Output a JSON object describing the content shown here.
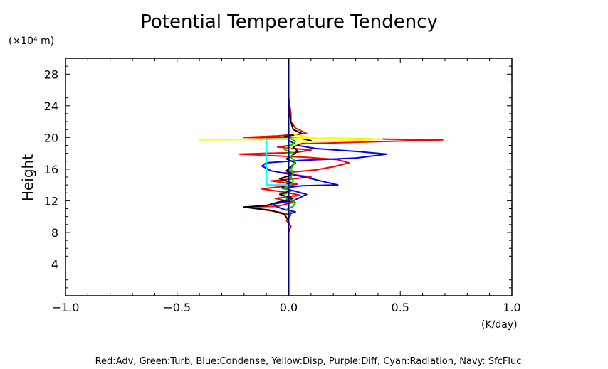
{
  "chart_data": {
    "type": "line",
    "title": "Potential Temperature Tendency",
    "ylabel": "Height",
    "y_unit": "(×10⁴ m)",
    "x_unit": "(K/day)",
    "xlim": [
      -1.0,
      1.0
    ],
    "ylim": [
      0,
      30
    ],
    "x_ticks": [
      "−1.0",
      "−0.5",
      "0.0",
      "0.5",
      "1.0"
    ],
    "x_tick_values": [
      -1.0,
      -0.5,
      0.0,
      0.5,
      1.0
    ],
    "y_ticks": [
      "4",
      "8",
      "12",
      "16",
      "20",
      "24",
      "28"
    ],
    "y_tick_values": [
      4,
      8,
      12,
      16,
      20,
      24,
      28
    ],
    "grid": false,
    "legend_text": "Red:Adv, Green:Turb, Blue:Condense, Yellow:Disp, Purple:Diff, Cyan:Radiation, Navy: SfcFluc",
    "colors": {
      "Adv": "#ff0000",
      "Turb": "#00cc00",
      "Condense": "#0000ff",
      "Disp": "#ffff00",
      "Diff": "#a020f0",
      "Cyan": "#00ffff",
      "Navy": "#000080",
      "Total": "#000000"
    },
    "series": [
      {
        "color": "#ff0000",
        "points": [
          [
            0,
            8
          ],
          [
            0.01,
            8.8
          ],
          [
            -0.01,
            9.5
          ],
          [
            0.01,
            10.2
          ],
          [
            -0.05,
            10.6
          ],
          [
            -0.12,
            10.9
          ],
          [
            -0.2,
            11.2
          ],
          [
            -0.05,
            11.3
          ],
          [
            0.02,
            11.8
          ],
          [
            -0.06,
            12.3
          ],
          [
            0.05,
            12.7
          ],
          [
            -0.02,
            13.1
          ],
          [
            -0.12,
            13.5
          ],
          [
            -0.03,
            13.8
          ],
          [
            0.04,
            14.1
          ],
          [
            -0.08,
            14.5
          ],
          [
            0.1,
            15.0
          ],
          [
            -0.03,
            15.5
          ],
          [
            0.12,
            15.9
          ],
          [
            0.2,
            16.3
          ],
          [
            0.27,
            16.8
          ],
          [
            0.22,
            17.2
          ],
          [
            0.08,
            17.5
          ],
          [
            -0.22,
            17.9
          ],
          [
            0.03,
            18.1
          ],
          [
            0.1,
            18.4
          ],
          [
            -0.05,
            18.8
          ],
          [
            0.06,
            19.2
          ],
          [
            0.69,
            19.7
          ],
          [
            0.1,
            19.9
          ],
          [
            -0.2,
            20.0
          ],
          [
            -0.05,
            20.2
          ],
          [
            0.08,
            20.5
          ],
          [
            0.03,
            21.2
          ],
          [
            0.01,
            22.0
          ],
          [
            0.01,
            23
          ],
          [
            0,
            25
          ],
          [
            0,
            28
          ],
          [
            0,
            30
          ]
        ]
      },
      {
        "color": "#000000",
        "points": [
          [
            0,
            8
          ],
          [
            0,
            9.5
          ],
          [
            -0.02,
            10.3
          ],
          [
            -0.08,
            10.8
          ],
          [
            -0.2,
            11.2
          ],
          [
            -0.1,
            11.4
          ],
          [
            -0.05,
            11.8
          ],
          [
            0.02,
            12.3
          ],
          [
            -0.04,
            12.8
          ],
          [
            0.01,
            13.3
          ],
          [
            -0.03,
            13.8
          ],
          [
            0.01,
            14.3
          ],
          [
            -0.04,
            14.8
          ],
          [
            0.02,
            15.3
          ],
          [
            -0.01,
            15.8
          ],
          [
            0.01,
            16.3
          ],
          [
            0.03,
            16.8
          ],
          [
            -0.01,
            17.3
          ],
          [
            0.02,
            17.8
          ],
          [
            0.04,
            18.3
          ],
          [
            0.02,
            18.8
          ],
          [
            0.05,
            19.2
          ],
          [
            0.1,
            19.6
          ],
          [
            0.05,
            19.9
          ],
          [
            -0.02,
            20.1
          ],
          [
            0.06,
            20.5
          ],
          [
            0.02,
            21.0
          ],
          [
            0.01,
            22
          ],
          [
            0,
            24
          ],
          [
            0,
            26
          ],
          [
            0,
            30
          ]
        ]
      },
      {
        "color": "#0000ff",
        "points": [
          [
            0,
            8
          ],
          [
            0,
            10.3
          ],
          [
            0.03,
            10.6
          ],
          [
            -0.02,
            10.9
          ],
          [
            -0.05,
            11.2
          ],
          [
            -0.07,
            11.6
          ],
          [
            0.02,
            12.0
          ],
          [
            0.05,
            12.4
          ],
          [
            0.08,
            12.8
          ],
          [
            0.03,
            13.2
          ],
          [
            -0.03,
            13.6
          ],
          [
            0.06,
            13.9
          ],
          [
            0.22,
            14.0
          ],
          [
            0.16,
            14.4
          ],
          [
            0.1,
            14.8
          ],
          [
            0.02,
            15.3
          ],
          [
            -0.08,
            15.8
          ],
          [
            -0.12,
            16.4
          ],
          [
            -0.1,
            16.8
          ],
          [
            0.05,
            17.1
          ],
          [
            0.3,
            17.4
          ],
          [
            0.44,
            17.9
          ],
          [
            0.32,
            18.2
          ],
          [
            0.12,
            18.6
          ],
          [
            0.04,
            19.0
          ],
          [
            0.02,
            19.3
          ],
          [
            0,
            19.6
          ],
          [
            0,
            20.5
          ],
          [
            0,
            25
          ],
          [
            0,
            30
          ]
        ]
      },
      {
        "color": "#ffff00",
        "points": [
          [
            0,
            8
          ],
          [
            0,
            18.5
          ],
          [
            0.02,
            19.0
          ],
          [
            0.06,
            19.4
          ],
          [
            0.3,
            19.6
          ],
          [
            0.42,
            19.8
          ],
          [
            0.1,
            19.9
          ],
          [
            -0.4,
            19.7
          ],
          [
            -0.1,
            19.75
          ],
          [
            0.1,
            20.0
          ],
          [
            0.03,
            20.3
          ],
          [
            0,
            21.0
          ],
          [
            0,
            30
          ]
        ]
      },
      {
        "color": "#00cc00",
        "points": [
          [
            0,
            8
          ],
          [
            0,
            10.3
          ],
          [
            0.01,
            10.6
          ],
          [
            -0.01,
            10.9
          ],
          [
            0.02,
            11.3
          ],
          [
            0.03,
            11.8
          ],
          [
            -0.01,
            12.3
          ],
          [
            -0.02,
            12.8
          ],
          [
            0.01,
            13.2
          ],
          [
            -0.02,
            13.6
          ],
          [
            0.01,
            14.0
          ],
          [
            0.02,
            14.5
          ],
          [
            0.01,
            15.0
          ],
          [
            0.02,
            15.5
          ],
          [
            0.01,
            16.0
          ],
          [
            0.02,
            16.5
          ],
          [
            0.03,
            17.0
          ],
          [
            0.01,
            17.5
          ],
          [
            0.02,
            18.0
          ],
          [
            -0.02,
            18.5
          ],
          [
            0.01,
            19.0
          ],
          [
            0.03,
            19.5
          ],
          [
            0,
            20
          ],
          [
            0,
            30
          ]
        ]
      },
      {
        "color": "#00ffff",
        "points": [
          [
            0,
            14.0
          ],
          [
            -0.1,
            14.0
          ],
          [
            -0.1,
            16.0
          ],
          [
            -0.1,
            18.0
          ],
          [
            -0.1,
            19.8
          ],
          [
            0,
            19.8
          ]
        ]
      },
      {
        "color": "#000080",
        "points": [
          [
            0,
            0
          ],
          [
            0,
            30
          ]
        ]
      }
    ]
  }
}
